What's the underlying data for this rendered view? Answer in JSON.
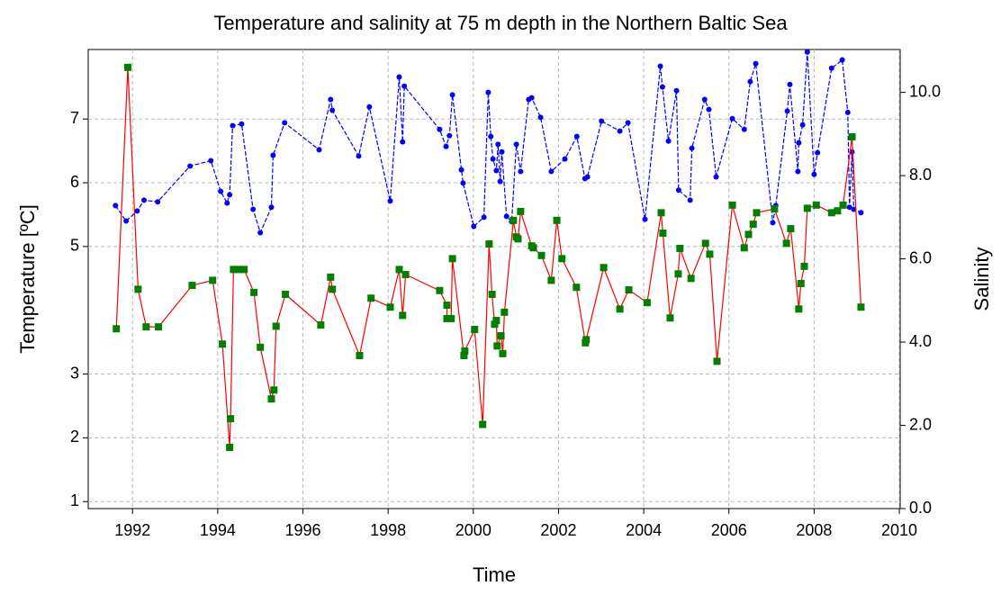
{
  "chart_data": {
    "type": "line",
    "title": "Temperature and salinity at 75 m depth in the Northern Baltic Sea",
    "xlabel": "Time",
    "ylabel": "Temperature [ºC]",
    "y2label": "Salinity",
    "xlim": [
      1990.96,
      2010.02
    ],
    "xticks": [
      1992,
      1994,
      1996,
      1998,
      2000,
      2002,
      2004,
      2006,
      2008,
      2010
    ],
    "ylim": [
      0.89,
      8.09
    ],
    "yticks": [
      1,
      2,
      3,
      5,
      6,
      7
    ],
    "y2lim": [
      0,
      11.03
    ],
    "y2ticks": [
      {
        "value": 0,
        "label": "0.0"
      },
      {
        "value": 2,
        "label": "2.0"
      },
      {
        "value": 4,
        "label": "4.0"
      },
      {
        "value": 6,
        "label": "6.0"
      },
      {
        "value": 8,
        "label": "8.0"
      },
      {
        "value": 10,
        "label": "10.0"
      }
    ],
    "grid": true,
    "series": [
      {
        "color": "#0000ff",
        "marker_color": "#0000ff",
        "marker": "circle",
        "dashed": true,
        "axis": "y2",
        "x": [
          1991.6,
          1991.85,
          1992.11,
          1992.27,
          1992.59,
          1993.35,
          1993.84,
          1994.07,
          1994.22,
          1994.28,
          1994.35,
          1994.56,
          1994.83,
          1995.0,
          1995.26,
          1995.3,
          1995.57,
          1996.38,
          1996.65,
          1996.69,
          1997.31,
          1997.56,
          1998.05,
          1998.26,
          1998.34,
          1998.38,
          1999.21,
          1999.36,
          1999.44,
          1999.51,
          1999.72,
          1999.76,
          2000.01,
          2000.25,
          2000.35,
          2000.41,
          2000.46,
          2000.54,
          2000.58,
          2000.63,
          2000.67,
          2000.78,
          2000.9,
          2001.01,
          2001.11,
          2001.3,
          2001.37,
          2001.58,
          2001.83,
          2002.15,
          2002.43,
          2002.62,
          2002.68,
          2003.01,
          2003.44,
          2003.63,
          2004.03,
          2004.39,
          2004.44,
          2004.58,
          2004.77,
          2004.82,
          2005.09,
          2005.13,
          2005.43,
          2005.53,
          2005.7,
          2006.08,
          2006.36,
          2006.5,
          2006.63,
          2007.03,
          2007.1,
          2007.37,
          2007.43,
          2007.62,
          2007.64,
          2007.73,
          2007.84,
          2008.0,
          2008.08,
          2008.41,
          2008.66,
          2008.79,
          2008.83,
          2008.89,
          2008.93,
          2009.1
        ],
        "values": [
          7.28,
          6.91,
          7.15,
          7.41,
          7.37,
          8.23,
          8.36,
          7.62,
          7.34,
          7.54,
          9.2,
          9.24,
          7.19,
          6.63,
          7.24,
          8.49,
          9.27,
          8.62,
          9.83,
          9.57,
          8.47,
          9.65,
          7.39,
          10.37,
          8.81,
          10.15,
          9.11,
          8.7,
          8.96,
          9.94,
          8.14,
          7.82,
          6.78,
          7.0,
          10.0,
          8.94,
          8.4,
          8.12,
          8.75,
          7.86,
          8.57,
          7.02,
          6.89,
          8.75,
          8.1,
          9.83,
          9.87,
          9.4,
          8.1,
          8.4,
          8.94,
          7.93,
          7.97,
          9.31,
          9.07,
          9.27,
          6.95,
          10.63,
          10.13,
          8.83,
          10.04,
          7.65,
          7.41,
          8.66,
          9.83,
          9.59,
          7.97,
          9.37,
          9.11,
          10.26,
          10.69,
          6.87,
          7.28,
          9.55,
          10.19,
          8.1,
          8.79,
          9.22,
          10.97,
          8.03,
          8.55,
          10.58,
          10.78,
          9.52,
          7.24,
          8.57,
          7.19,
          7.11
        ]
      },
      {
        "color": "#ff0000",
        "marker_color": "#008000",
        "marker": "square",
        "dashed": false,
        "axis": "y",
        "x": [
          1991.62,
          1991.89,
          1992.13,
          1992.32,
          1992.61,
          1993.4,
          1993.88,
          1994.11,
          1994.28,
          1994.3,
          1994.37,
          1994.49,
          1994.62,
          1994.85,
          1995.0,
          1995.26,
          1995.32,
          1995.37,
          1995.59,
          1996.42,
          1996.65,
          1996.69,
          1997.33,
          1997.6,
          1998.05,
          1998.26,
          1998.34,
          1998.41,
          1999.21,
          1999.38,
          1999.38,
          1999.48,
          1999.51,
          1999.78,
          1999.8,
          2000.03,
          2000.22,
          2000.37,
          2000.44,
          2000.5,
          2000.54,
          2000.56,
          2000.65,
          2000.69,
          2000.73,
          2000.94,
          2001.01,
          2001.05,
          2001.11,
          2001.37,
          2001.41,
          2001.6,
          2001.83,
          2001.96,
          2002.08,
          2002.42,
          2002.63,
          2002.65,
          2003.06,
          2003.44,
          2003.65,
          2004.08,
          2004.41,
          2004.45,
          2004.62,
          2004.81,
          2004.85,
          2005.11,
          2005.45,
          2005.55,
          2005.72,
          2006.08,
          2006.36,
          2006.46,
          2006.57,
          2006.65,
          2007.07,
          2007.35,
          2007.45,
          2007.64,
          2007.69,
          2007.77,
          2007.84,
          2008.05,
          2008.41,
          2008.55,
          2008.68,
          2008.89,
          2009.1
        ],
        "values": [
          3.71,
          7.81,
          4.33,
          3.74,
          3.74,
          4.39,
          4.47,
          3.47,
          1.85,
          2.3,
          4.64,
          4.64,
          4.64,
          4.28,
          3.42,
          2.61,
          2.75,
          3.75,
          4.25,
          3.77,
          4.52,
          4.33,
          3.29,
          4.19,
          4.05,
          4.64,
          3.92,
          4.56,
          4.31,
          4.08,
          3.87,
          3.87,
          4.81,
          3.29,
          3.36,
          3.7,
          2.21,
          5.04,
          4.25,
          3.78,
          3.84,
          3.44,
          3.6,
          3.32,
          3.97,
          5.41,
          5.15,
          5.12,
          5.55,
          5.01,
          4.98,
          4.86,
          4.47,
          5.41,
          4.81,
          4.36,
          3.49,
          3.54,
          4.67,
          4.02,
          4.32,
          4.12,
          5.53,
          5.21,
          3.88,
          4.57,
          4.97,
          4.5,
          5.05,
          4.88,
          3.2,
          5.65,
          4.98,
          5.19,
          5.35,
          5.53,
          5.59,
          5.05,
          5.28,
          4.02,
          4.42,
          4.69,
          5.6,
          5.65,
          5.53,
          5.56,
          5.65,
          6.72,
          4.05
        ]
      }
    ]
  }
}
